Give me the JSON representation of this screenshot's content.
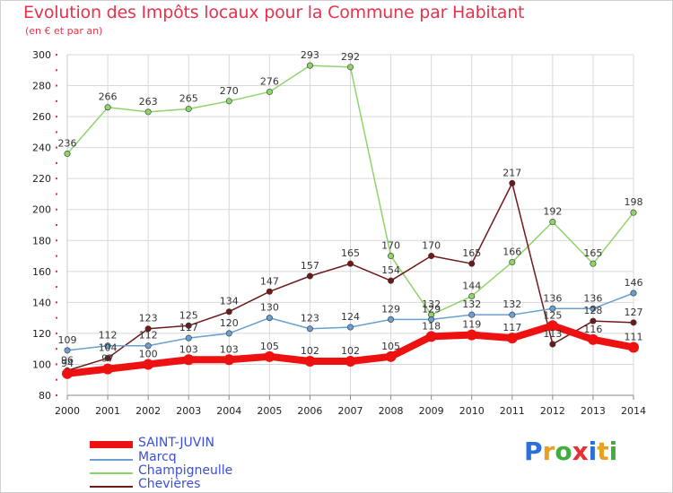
{
  "header": {
    "title": "Evolution des Impôts locaux pour la Commune par Habitant",
    "subtitle": "(en € et par an)"
  },
  "brand": {
    "text": "Proxiti",
    "letter_colors": [
      "#2a6fdb",
      "#e8a020",
      "#3fae3f",
      "#e83030",
      "#2a6fdb",
      "#e8a020",
      "#3fae3f"
    ]
  },
  "colors": {
    "title": "#e8324b",
    "axis_text": "#222222",
    "axis_red_ticks": "#e8324b",
    "grid": "#d8d8d8",
    "legend_text": "#3b4fd8"
  },
  "chart_data": {
    "type": "line",
    "title": "Evolution des Impôts locaux pour la Commune par Habitant",
    "subtitle": "(en € et par an)",
    "x": [
      "2000",
      "2001",
      "2002",
      "2003",
      "2004",
      "2005",
      "2006",
      "2007",
      "2008",
      "2009",
      "2010",
      "2011",
      "2012",
      "2013",
      "2014"
    ],
    "ylim": [
      80,
      300
    ],
    "yticks": [
      80,
      100,
      120,
      140,
      160,
      180,
      200,
      220,
      240,
      260,
      280,
      300
    ],
    "grid": true,
    "legend_position": "bottom-left",
    "series": [
      {
        "name": "SAINT-JUVIN",
        "color": "#ee1111",
        "width": 8,
        "values": [
          94,
          97,
          100,
          103,
          103,
          105,
          102,
          102,
          105,
          118,
          119,
          117,
          125,
          116,
          111
        ],
        "labels": [
          "94",
          "97",
          "100",
          "103",
          "103",
          "105",
          "102",
          "102",
          "105",
          "118",
          "119",
          "117",
          "125",
          "116",
          "111"
        ]
      },
      {
        "name": "Marcq",
        "color": "#6aa0d0",
        "width": 1.5,
        "values": [
          109,
          112,
          112,
          117,
          120,
          130,
          123,
          124,
          129,
          129,
          132,
          132,
          136,
          136,
          146
        ],
        "labels": [
          "109",
          "112",
          "112",
          "117",
          "120",
          "130",
          "123",
          "124",
          "129",
          "129",
          "132",
          "132",
          "136",
          "136",
          "146"
        ]
      },
      {
        "name": "Champigneulle",
        "color": "#8fd46a",
        "width": 1.5,
        "values": [
          236,
          266,
          263,
          265,
          270,
          276,
          293,
          292,
          170,
          132,
          144,
          166,
          192,
          165,
          198
        ],
        "labels": [
          "236",
          "266",
          "263",
          "265",
          "270",
          "276",
          "293",
          "292",
          "170",
          "132",
          "144",
          "166",
          "192",
          "165",
          "198"
        ]
      },
      {
        "name": "Chevières",
        "color": "#6e1a1a",
        "width": 1.5,
        "values": [
          96,
          104,
          123,
          125,
          134,
          147,
          157,
          165,
          154,
          170,
          165,
          217,
          113,
          128,
          127
        ],
        "labels": [
          "96",
          "104",
          "123",
          "125",
          "134",
          "147",
          "157",
          "165",
          "154",
          "170",
          "165",
          "217",
          "113",
          "128",
          "127"
        ]
      }
    ]
  }
}
